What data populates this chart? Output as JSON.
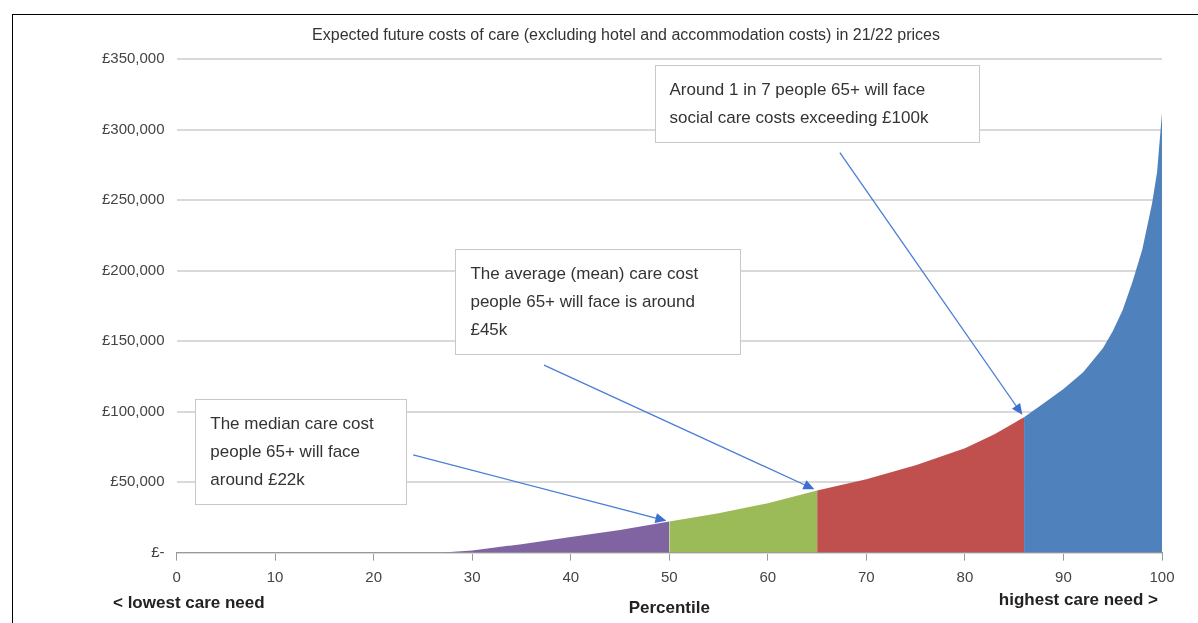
{
  "chart_data": {
    "type": "area",
    "title": "Expected future costs of care (excluding hotel and accommodation costs) in 21/22 prices",
    "xlabel": "Percentile",
    "legend": false,
    "grid": "y",
    "xlim": [
      0,
      100
    ],
    "xticks": [
      0,
      10,
      20,
      30,
      40,
      50,
      60,
      70,
      80,
      90,
      100
    ],
    "ylim": [
      0,
      350000
    ],
    "yticks": [
      {
        "value": 0,
        "label": "£-"
      },
      {
        "value": 50000,
        "label": "£50,000"
      },
      {
        "value": 100000,
        "label": "£100,000"
      },
      {
        "value": 150000,
        "label": "£150,000"
      },
      {
        "value": 200000,
        "label": "£200,000"
      },
      {
        "value": 250000,
        "label": "£250,000"
      },
      {
        "value": 300000,
        "label": "£300,000"
      },
      {
        "value": 350000,
        "label": "£350,000"
      }
    ],
    "series": [
      {
        "color": "#8064a2",
        "x": [
          27,
          30,
          35,
          40,
          45,
          50
        ],
        "values": [
          0,
          1500,
          6000,
          11000,
          16000,
          22000
        ]
      },
      {
        "color": "#9bbb59",
        "x": [
          50,
          55,
          60,
          65
        ],
        "values": [
          22000,
          28000,
          35000,
          44000
        ]
      },
      {
        "color": "#c0504d",
        "x": [
          65,
          70,
          75,
          80,
          83,
          86
        ],
        "values": [
          44000,
          52000,
          62000,
          74000,
          84000,
          96000
        ]
      },
      {
        "color": "#4f81bd",
        "x": [
          86,
          87,
          88,
          90,
          92,
          94,
          95,
          96,
          97,
          98,
          99,
          99.5,
          100
        ],
        "values": [
          96000,
          101000,
          106000,
          116000,
          128000,
          145000,
          157000,
          172000,
          192000,
          215000,
          248000,
          270000,
          312000
        ]
      }
    ],
    "annotations": [
      "The median care cost people 65+ will face around £22k",
      "The average (mean) care cost people 65+ will face is around £45k",
      "Around 1 in 7 people 65+ will face social care costs exceeding £100k",
      "< lowest care need",
      "highest care need >"
    ]
  }
}
